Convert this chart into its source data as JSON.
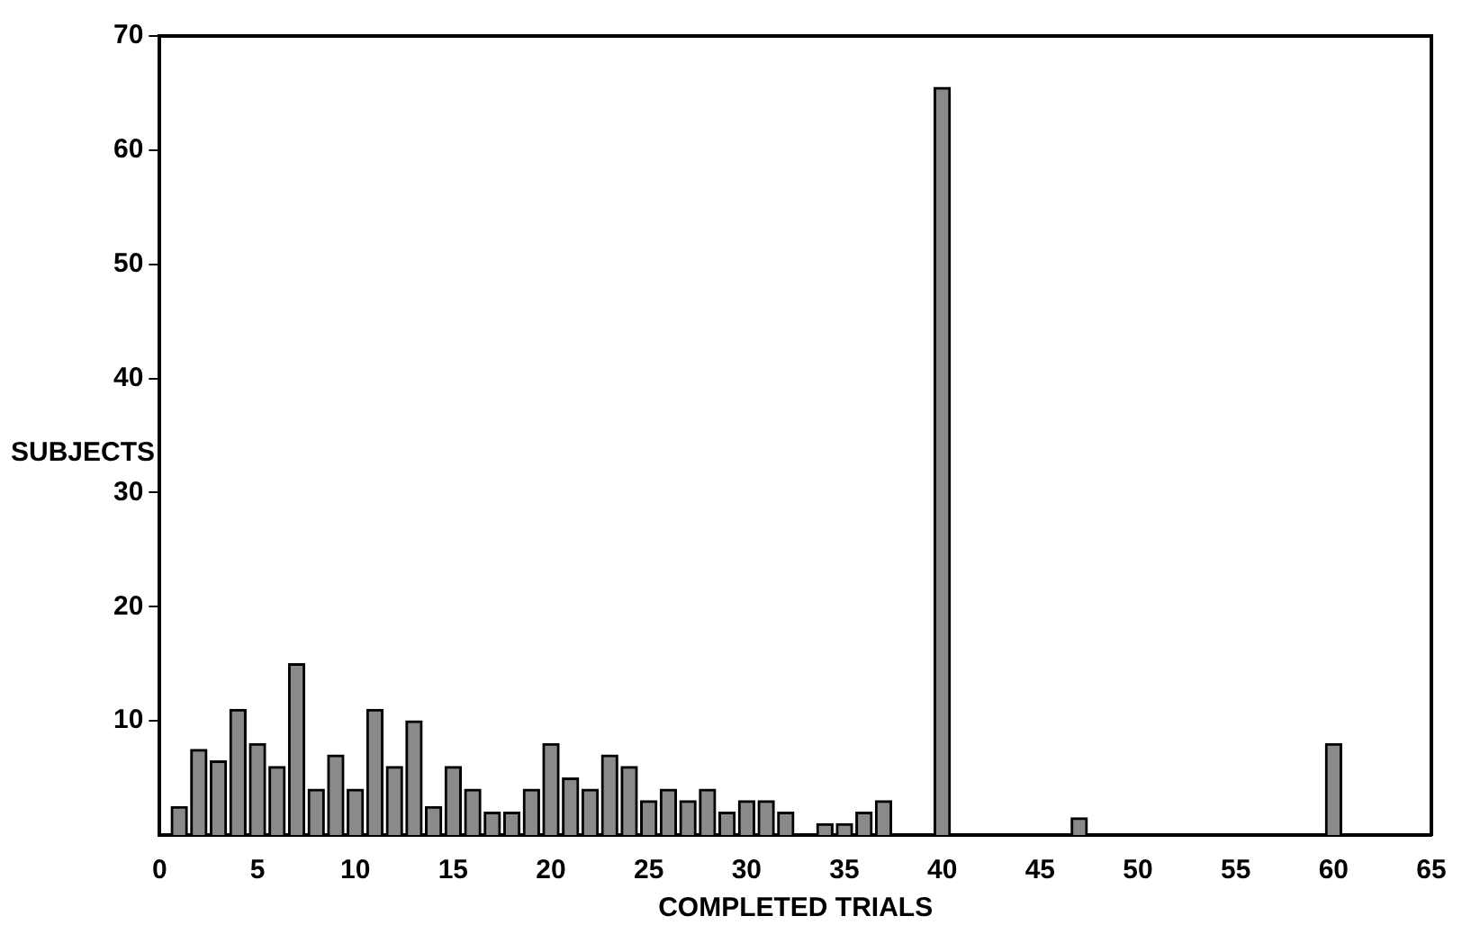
{
  "chart_data": {
    "type": "bar",
    "xlabel": "COMPLETED TRIALS",
    "ylabel": "SUBJECTS",
    "x": [
      1,
      2,
      3,
      4,
      5,
      6,
      7,
      8,
      9,
      10,
      11,
      12,
      13,
      14,
      15,
      16,
      17,
      18,
      19,
      20,
      21,
      22,
      23,
      24,
      25,
      26,
      27,
      28,
      29,
      30,
      31,
      32,
      34,
      35,
      36,
      37,
      40,
      47,
      60
    ],
    "values": [
      2.5,
      7.5,
      6.5,
      11,
      8,
      6,
      15,
      4,
      7,
      4,
      11,
      6,
      10,
      2.5,
      6,
      4,
      2,
      2,
      4,
      8,
      5,
      4,
      7,
      6,
      3,
      4,
      3,
      4,
      2,
      3,
      3,
      2,
      1,
      1,
      2,
      3,
      65.5,
      1.5,
      8
    ],
    "color": "#8a8a8a",
    "xlim": [
      0,
      65
    ],
    "xticks": [
      0,
      5,
      10,
      15,
      20,
      25,
      30,
      35,
      40,
      45,
      50,
      55,
      60,
      65
    ],
    "ylim": [
      0,
      70
    ],
    "yticks": [
      10,
      20,
      30,
      40,
      50,
      60,
      70
    ],
    "grid": false,
    "legend": false
  }
}
